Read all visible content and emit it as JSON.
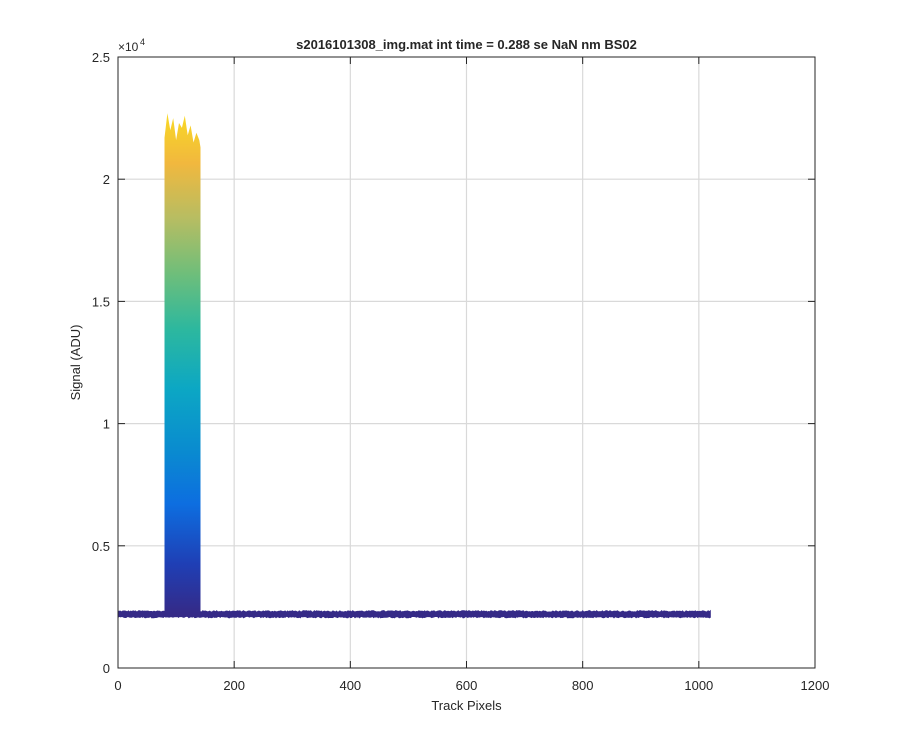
{
  "chart_data": {
    "type": "line",
    "title": "s2016101308_img.mat int time = 0.288 se  NaN nm BS02",
    "xlabel": "Track Pixels",
    "ylabel": "Signal (ADU)",
    "xlim": [
      0,
      1200
    ],
    "ylim": [
      0,
      25000
    ],
    "x_ticks": [
      0,
      200,
      400,
      600,
      800,
      1000,
      1200
    ],
    "y_ticks": [
      0,
      5000,
      10000,
      15000,
      20000,
      25000
    ],
    "y_tick_labels": [
      "0",
      "0.5",
      "1",
      "1.5",
      "2",
      "2.5"
    ],
    "y_exponent_label": "×10",
    "y_exponent_power": "4",
    "grid": true,
    "legend": "none",
    "colormap": "parula",
    "baseline": {
      "x_range": [
        0,
        1020
      ],
      "level": 2180,
      "band": [
        2080,
        2320
      ],
      "color": "#352a87"
    },
    "peak": {
      "x_range": [
        80,
        142
      ],
      "min_level": 2200,
      "max_level": 22500,
      "top_profile_x": [
        80,
        85,
        90,
        95,
        100,
        105,
        110,
        115,
        120,
        125,
        130,
        135,
        140,
        142
      ],
      "top_profile_y": [
        21700,
        22700,
        22000,
        22500,
        21600,
        22300,
        22100,
        22600,
        21800,
        22200,
        21500,
        21900,
        21600,
        21300
      ]
    }
  }
}
